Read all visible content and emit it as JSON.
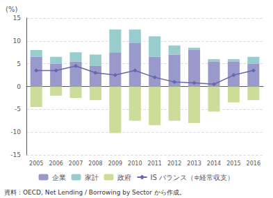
{
  "chart_data": {
    "type": "bar",
    "stacked": true,
    "ylabel": "(%)",
    "annotations": [
      "資料：OECD, Net Lending / Borrowing by Sector から作成。"
    ],
    "categories": [
      "2005",
      "2006",
      "2007",
      "2008",
      "2009",
      "2010",
      "2011",
      "2012",
      "2013",
      "2014",
      "2015",
      "2016"
    ],
    "series": [
      {
        "name": "企業",
        "color": "#9999cc",
        "values": [
          6.5,
          5.0,
          5.5,
          4.5,
          7.5,
          9.5,
          6.5,
          7.0,
          8.0,
          5.5,
          5.5,
          5.0
        ]
      },
      {
        "name": "家計",
        "color": "#99cccc",
        "values": [
          1.5,
          1.5,
          2.0,
          2.5,
          5.0,
          3.0,
          4.5,
          2.0,
          0.5,
          0.5,
          0.5,
          1.5
        ]
      },
      {
        "name": "政府",
        "color": "#ccdd99",
        "values": [
          -4.5,
          -2.0,
          -2.5,
          -3.0,
          -10.2,
          -7.5,
          -8.5,
          -7.5,
          -8.0,
          -5.5,
          -3.5,
          -3.0
        ]
      },
      {
        "name": "IS バランス（≑経常収支）",
        "type": "line",
        "marker": "diamond",
        "color": "#6666aa",
        "values": [
          3.5,
          3.5,
          4.5,
          3.0,
          2.5,
          3.5,
          2.0,
          1.0,
          0.8,
          0.5,
          2.5,
          3.5
        ]
      }
    ],
    "ylim": [
      -15,
      15
    ],
    "yticks": [
      -15,
      -10,
      -5,
      0,
      5,
      10,
      15
    ],
    "grid": true,
    "legend": "bottom"
  }
}
